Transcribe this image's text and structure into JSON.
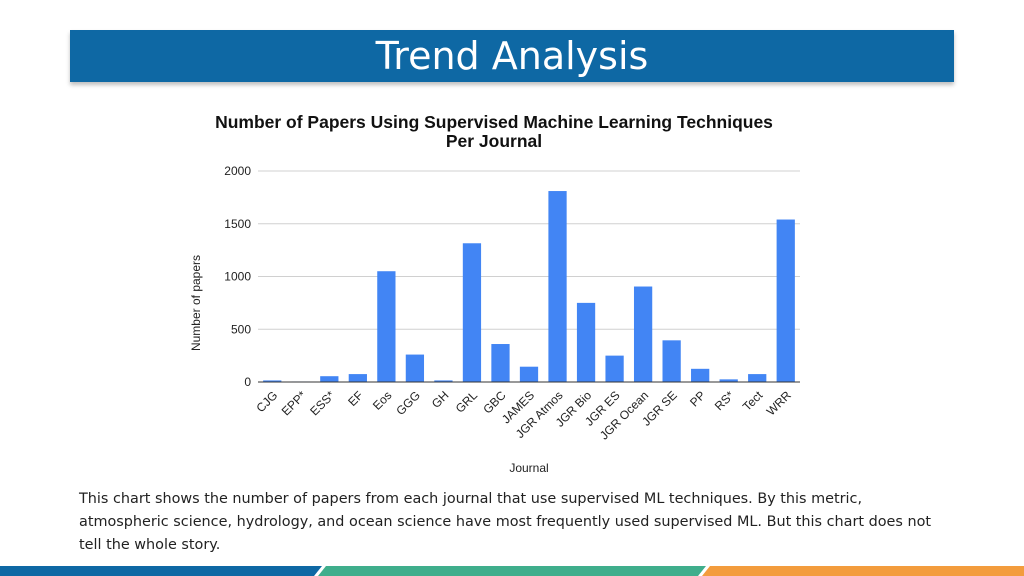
{
  "slide": {
    "title": "Trend Analysis",
    "caption": "This chart shows the number of papers from each journal that use supervised ML techniques. By this metric, atmospheric science, hydrology, and ocean science have most frequently used supervised ML. But this chart does not tell the whole story."
  },
  "colors": {
    "header": "#0e68a4",
    "bar": "#4285f4",
    "footer": [
      "#0e68a4",
      "#3fae8c",
      "#f39c3d"
    ]
  },
  "chart_data": {
    "type": "bar",
    "title_lines": [
      "Number of Papers Using Supervised Machine Learning Techniques",
      "Per Journal"
    ],
    "xlabel": "Journal",
    "ylabel": "Number of papers",
    "ylim": [
      0,
      2000
    ],
    "yticks": [
      0,
      500,
      1000,
      1500,
      2000
    ],
    "grid": true,
    "categories": [
      "CJG",
      "EPP*",
      "ESS*",
      "EF",
      "Eos",
      "GGG",
      "GH",
      "GRL",
      "GBC",
      "JAMES",
      "JGR Atmos",
      "JGR Bio",
      "JGR ES",
      "JGR Ocean",
      "JGR SE",
      "PP",
      "RS*",
      "Tect",
      "WRR"
    ],
    "values": [
      15,
      5,
      55,
      75,
      1050,
      260,
      15,
      1315,
      360,
      145,
      1810,
      750,
      250,
      905,
      395,
      125,
      25,
      75,
      1540
    ]
  }
}
